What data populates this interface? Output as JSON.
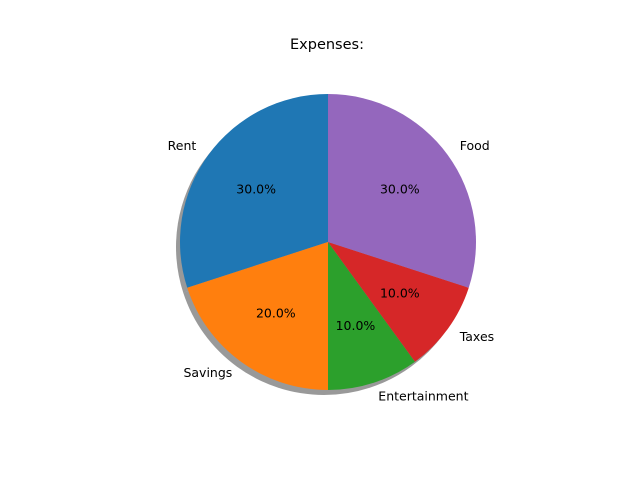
{
  "chart_data": {
    "type": "pie",
    "title": "Expenses:",
    "categories": [
      "Rent",
      "Savings",
      "Entertainment",
      "Taxes",
      "Food"
    ],
    "values": [
      30,
      20,
      10,
      10,
      30
    ],
    "percent_labels": [
      "30.0%",
      "20.0%",
      "10.0%",
      "10.0%",
      "30.0%"
    ],
    "colors": [
      "#1f77b4",
      "#ff7f0e",
      "#2ca02c",
      "#d62728",
      "#9467bd"
    ],
    "start_angle_deg": 90,
    "direction": "counterclockwise",
    "shadow": true
  }
}
